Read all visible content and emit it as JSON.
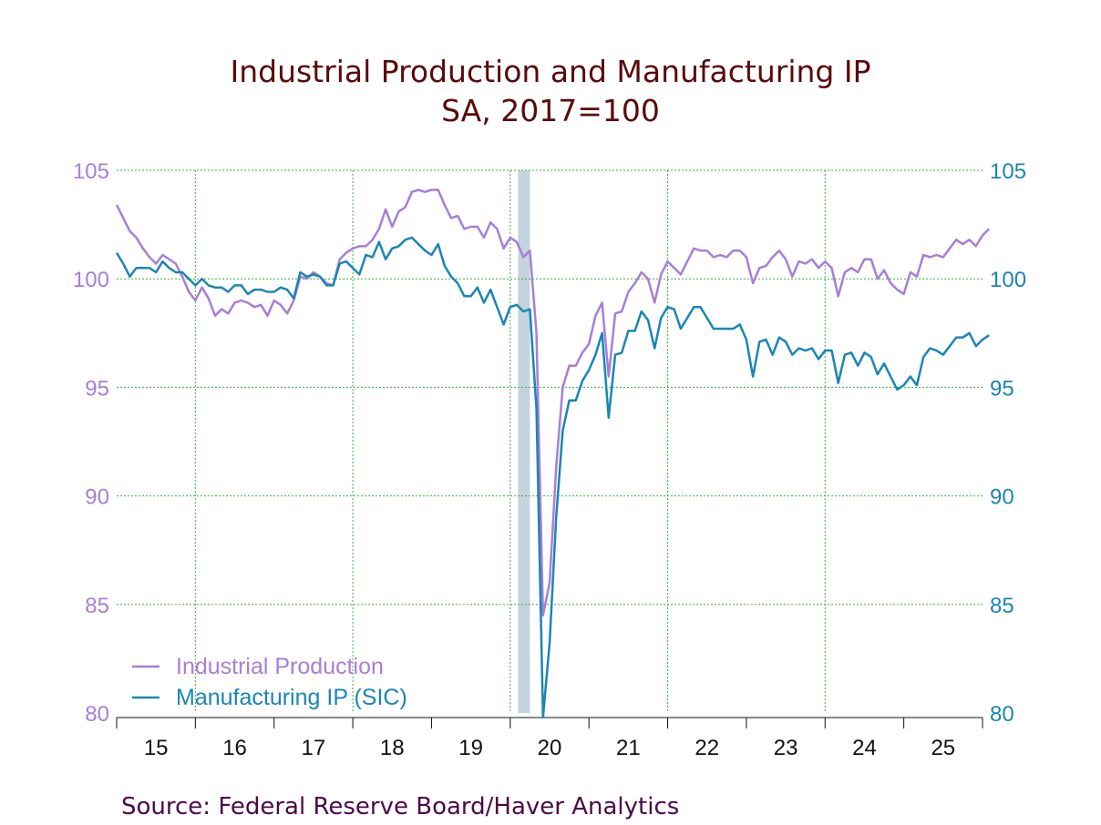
{
  "chart_data": {
    "type": "line",
    "title": "Industrial Production and Manufacturing IP",
    "subtitle": "SA, 2017=100",
    "source": "Source:  Federal Reserve Board/Haver Analytics",
    "ylim": [
      80,
      105
    ],
    "y_ticks": [
      "105",
      "100",
      "95",
      "90",
      "85",
      "80"
    ],
    "x_start": 2015.0,
    "x_end": 2026.0,
    "x_step": 0.0833333,
    "x_tick_labels": [
      "15",
      "16",
      "17",
      "18",
      "19",
      "20",
      "21",
      "22",
      "23",
      "24",
      "25"
    ],
    "recession": [
      2020.1,
      2020.25
    ],
    "colors": {
      "ip": "#a77fd6",
      "mfg": "#1a86b3",
      "grid": "#35b535",
      "recession": "#c4d3dd"
    },
    "series": [
      {
        "name": "Industrial Production",
        "values": [
          103.4,
          102.8,
          102.2,
          101.9,
          101.4,
          101.0,
          100.7,
          101.1,
          100.9,
          100.7,
          100.1,
          99.4,
          99.0,
          99.6,
          99.1,
          98.3,
          98.6,
          98.4,
          98.9,
          99.0,
          98.9,
          98.7,
          98.8,
          98.3,
          99.0,
          98.8,
          98.4,
          99.0,
          100.1,
          100.0,
          100.3,
          100.1,
          99.8,
          99.7,
          100.9,
          101.2,
          101.4,
          101.5,
          101.5,
          101.8,
          102.3,
          103.2,
          102.4,
          103.1,
          103.3,
          104.0,
          104.1,
          104.0,
          104.1,
          104.1,
          103.4,
          102.8,
          102.9,
          102.3,
          102.4,
          102.4,
          101.9,
          102.6,
          102.3,
          101.4,
          101.9,
          101.7,
          101.0,
          101.3,
          97.5,
          84.5,
          86.0,
          91.3,
          95.0,
          96.0,
          96.0,
          96.6,
          97.0,
          98.3,
          98.9,
          95.5,
          98.4,
          98.5,
          99.4,
          99.8,
          100.3,
          100.0,
          98.9,
          100.2,
          100.8,
          100.5,
          100.2,
          100.8,
          101.4,
          101.3,
          101.3,
          101.0,
          101.1,
          101.0,
          101.3,
          101.3,
          101.0,
          99.8,
          100.5,
          100.6,
          101.0,
          101.3,
          100.9,
          100.1,
          100.8,
          100.7,
          100.9,
          100.5,
          100.8,
          100.5,
          99.2,
          100.3,
          100.5,
          100.3,
          100.9,
          100.9,
          100.0,
          100.4,
          99.8,
          99.5,
          99.3,
          100.3,
          100.1,
          101.1,
          101.0,
          101.1,
          101.0,
          101.4,
          101.8,
          101.6,
          101.8,
          101.5,
          102.0,
          102.3
        ]
      },
      {
        "name": "Manufacturing IP (SIC)",
        "values": [
          101.2,
          100.7,
          100.1,
          100.5,
          100.5,
          100.5,
          100.3,
          100.8,
          100.5,
          100.3,
          100.3,
          100.0,
          99.7,
          100.0,
          99.7,
          99.6,
          99.6,
          99.4,
          99.7,
          99.7,
          99.3,
          99.5,
          99.5,
          99.4,
          99.4,
          99.6,
          99.5,
          99.1,
          100.3,
          100.1,
          100.2,
          100.1,
          99.7,
          99.7,
          100.7,
          100.8,
          100.5,
          100.2,
          101.1,
          101.0,
          101.7,
          100.9,
          101.4,
          101.5,
          101.8,
          101.9,
          101.6,
          101.3,
          101.1,
          101.6,
          100.6,
          100.1,
          99.8,
          99.2,
          99.2,
          99.6,
          98.9,
          99.5,
          98.7,
          97.9,
          98.7,
          98.8,
          98.5,
          98.6,
          94.0,
          79.8,
          83.2,
          89.0,
          93.0,
          94.4,
          94.4,
          95.3,
          95.8,
          96.5,
          97.5,
          93.6,
          96.5,
          96.6,
          97.6,
          97.6,
          98.5,
          98.1,
          96.8,
          98.2,
          98.7,
          98.6,
          97.7,
          98.2,
          98.7,
          98.7,
          98.2,
          97.7,
          97.7,
          97.7,
          97.7,
          97.9,
          97.2,
          95.5,
          97.1,
          97.2,
          96.5,
          97.3,
          97.1,
          96.5,
          96.8,
          96.7,
          96.8,
          96.3,
          96.7,
          96.7,
          95.2,
          96.5,
          96.6,
          96.0,
          96.6,
          96.4,
          95.6,
          96.1,
          95.5,
          94.9,
          95.1,
          95.5,
          95.1,
          96.4,
          96.8,
          96.7,
          96.5,
          96.9,
          97.3,
          97.3,
          97.5,
          96.9,
          97.2,
          97.4
        ]
      }
    ]
  }
}
